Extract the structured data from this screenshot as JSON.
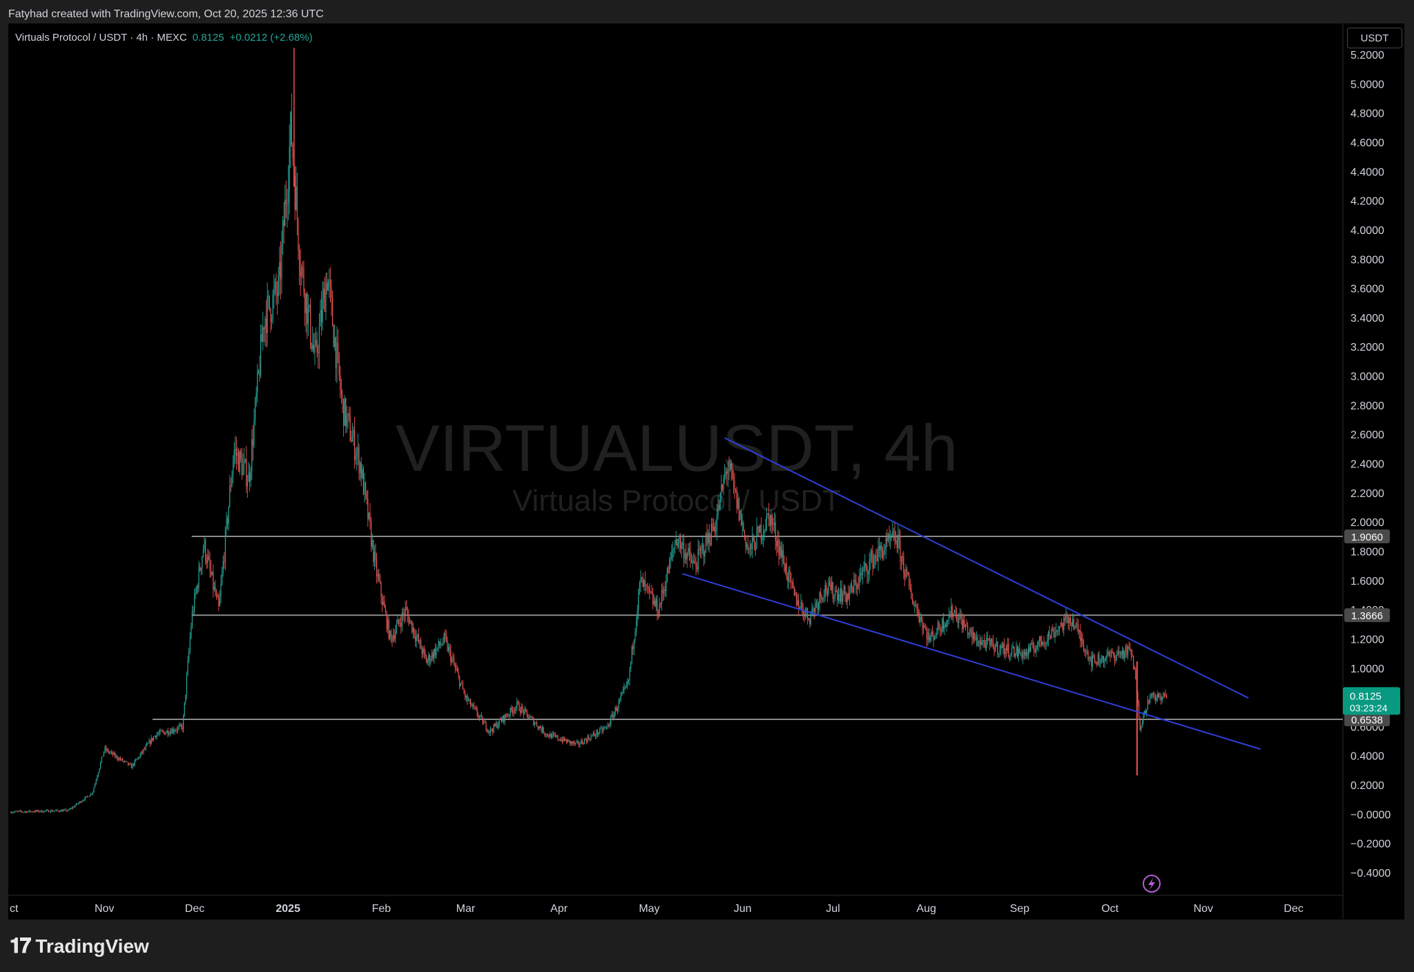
{
  "header": {
    "caption": "Fatyhad created with TradingView.com, Oct 20, 2025 12:36 UTC"
  },
  "legend": {
    "symbol": "Virtuals Protocol / USDT · 4h · MEXC",
    "last": "0.8125",
    "change": "+0.0212 (+2.68%)"
  },
  "unit_button": "USDT",
  "watermark": {
    "line1": "VIRTUALUSDT, 4h",
    "line2": "Virtuals Protocol / USDT"
  },
  "brand": "TradingView",
  "colors": {
    "up": "#26a69a",
    "down": "#ef5350",
    "trendline": "#2f3fd8",
    "level": "#8a8a8a",
    "price_tag": "#089981"
  },
  "chart_data": {
    "type": "candlestick",
    "timeframe": "4h",
    "y_range": [
      -0.5,
      5.35
    ],
    "x_ticks": [
      "ct",
      "Nov",
      "Dec",
      "2025",
      "Feb",
      "Mar",
      "Apr",
      "May",
      "Jun",
      "Jul",
      "Aug",
      "Sep",
      "Oct",
      "Nov",
      "Dec"
    ],
    "y_ticks": [
      "5.2000",
      "5.0000",
      "4.8000",
      "4.6000",
      "4.4000",
      "4.2000",
      "4.0000",
      "3.8000",
      "3.6000",
      "3.4000",
      "3.2000",
      "3.0000",
      "2.8000",
      "2.6000",
      "2.4000",
      "2.2000",
      "2.0000",
      "1.8000",
      "1.6000",
      "1.4000",
      "1.2000",
      "1.0000",
      "0.6000",
      "0.4000",
      "0.2000",
      "−0.0000",
      "−0.2000",
      "−0.4000"
    ],
    "price_path": [
      [
        "2024-10-01",
        0.02
      ],
      [
        "2024-10-20",
        0.03
      ],
      [
        "2024-10-28",
        0.15
      ],
      [
        "2024-11-01",
        0.45
      ],
      [
        "2024-11-10",
        0.33
      ],
      [
        "2024-11-18",
        0.55
      ],
      [
        "2024-11-27",
        0.6
      ],
      [
        "2024-11-30",
        1.35
      ],
      [
        "2024-12-04",
        1.85
      ],
      [
        "2024-12-09",
        1.4
      ],
      [
        "2024-12-14",
        2.5
      ],
      [
        "2024-12-19",
        2.3
      ],
      [
        "2024-12-24",
        3.4
      ],
      [
        "2024-12-29",
        3.6
      ],
      [
        "2025-01-02",
        4.7
      ],
      [
        "2025-01-05",
        3.8
      ],
      [
        "2025-01-10",
        3.1
      ],
      [
        "2025-01-14",
        3.7
      ],
      [
        "2025-01-19",
        2.8
      ],
      [
        "2025-01-25",
        2.4
      ],
      [
        "2025-01-30",
        1.7
      ],
      [
        "2025-02-04",
        1.2
      ],
      [
        "2025-02-09",
        1.4
      ],
      [
        "2025-02-16",
        1.05
      ],
      [
        "2025-02-22",
        1.2
      ],
      [
        "2025-03-01",
        0.8
      ],
      [
        "2025-03-09",
        0.57
      ],
      [
        "2025-03-18",
        0.75
      ],
      [
        "2025-03-28",
        0.55
      ],
      [
        "2025-04-07",
        0.48
      ],
      [
        "2025-04-17",
        0.6
      ],
      [
        "2025-04-24",
        0.9
      ],
      [
        "2025-04-28",
        1.6
      ],
      [
        "2025-05-04",
        1.4
      ],
      [
        "2025-05-10",
        1.9
      ],
      [
        "2025-05-16",
        1.7
      ],
      [
        "2025-05-23",
        2.0
      ],
      [
        "2025-05-27",
        2.4
      ],
      [
        "2025-06-03",
        1.8
      ],
      [
        "2025-06-10",
        2.05
      ],
      [
        "2025-06-18",
        1.5
      ],
      [
        "2025-06-23",
        1.35
      ],
      [
        "2025-06-28",
        1.55
      ],
      [
        "2025-07-06",
        1.5
      ],
      [
        "2025-07-14",
        1.75
      ],
      [
        "2025-07-22",
        1.9
      ],
      [
        "2025-07-27",
        1.5
      ],
      [
        "2025-08-02",
        1.2
      ],
      [
        "2025-08-10",
        1.4
      ],
      [
        "2025-08-17",
        1.2
      ],
      [
        "2025-08-24",
        1.15
      ],
      [
        "2025-09-03",
        1.1
      ],
      [
        "2025-09-12",
        1.25
      ],
      [
        "2025-09-18",
        1.35
      ],
      [
        "2025-09-25",
        1.05
      ],
      [
        "2025-10-03",
        1.1
      ],
      [
        "2025-10-08",
        1.12
      ],
      [
        "2025-10-10",
        0.85
      ],
      [
        "2025-10-11",
        0.6
      ],
      [
        "2025-10-14",
        0.8
      ],
      [
        "2025-10-20",
        0.8125
      ]
    ],
    "flash_low": [
      "2025-10-10",
      0.27
    ],
    "levels": [
      {
        "value": 1.906,
        "label": "1.9060",
        "from": "2024-11-30"
      },
      {
        "value": 1.3666,
        "label": "1.3666",
        "from": "2024-11-30"
      },
      {
        "value": 0.6538,
        "label": "0.6538",
        "from": "2024-11-17"
      }
    ],
    "last_price": {
      "value": 0.8125,
      "label": "0.8125",
      "countdown": "03:23:24"
    },
    "trendlines": [
      {
        "from": [
          "2025-05-26",
          2.58
        ],
        "to": [
          "2025-11-16",
          0.8
        ]
      },
      {
        "from": [
          "2025-05-12",
          1.65
        ],
        "to": [
          "2025-11-20",
          0.45
        ]
      }
    ]
  }
}
